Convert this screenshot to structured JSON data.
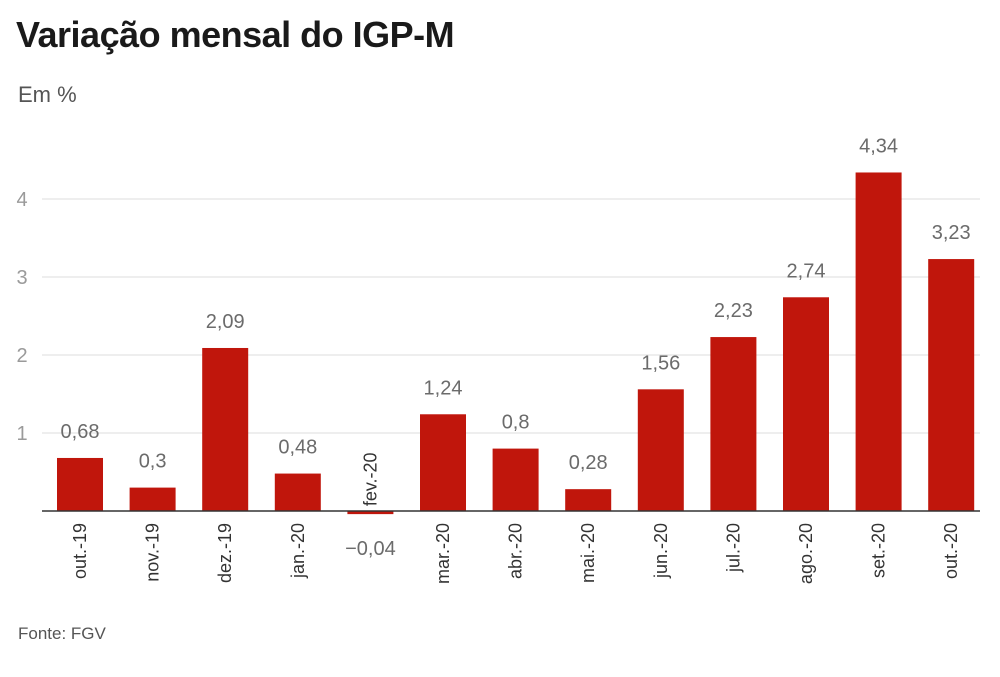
{
  "header": {
    "title": "Variação mensal do IGP-M",
    "subtitle": "Em %"
  },
  "footer": {
    "source": "Fonte: FGV"
  },
  "colors": {
    "bar": "#c0160c",
    "grid": "#dddddd",
    "axis": "#333333"
  },
  "chart_data": {
    "type": "bar",
    "title": "Variação mensal do IGP-M",
    "subtitle": "Em %",
    "xlabel": "",
    "ylabel": "",
    "categories": [
      "out.-19",
      "nov.-19",
      "dez.-19",
      "jan.-20",
      "fev.-20",
      "mar.-20",
      "abr.-20",
      "mai.-20",
      "jun.-20",
      "jul.-20",
      "ago.-20",
      "set.-20",
      "out.-20"
    ],
    "values": [
      0.68,
      0.3,
      2.09,
      0.48,
      -0.04,
      1.24,
      0.8,
      0.28,
      1.56,
      2.23,
      2.74,
      4.34,
      3.23
    ],
    "value_labels": [
      "0,68",
      "0,3",
      "2,09",
      "0,48",
      "−0,04",
      "1,24",
      "0,8",
      "0,28",
      "1,56",
      "2,23",
      "2,74",
      "4,34",
      "3,23"
    ],
    "yticks": [
      1,
      2,
      3,
      4
    ],
    "ytick_labels": [
      "1",
      "2",
      "3",
      "4"
    ],
    "ylim": [
      0,
      4.6
    ],
    "grid": true,
    "legend": "none"
  }
}
